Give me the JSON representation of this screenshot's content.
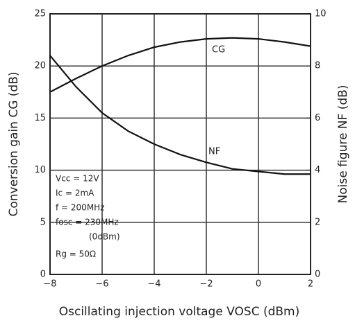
{
  "chart_data": {
    "type": "line",
    "x": [
      -8,
      -7,
      -6,
      -5,
      -4,
      -3,
      -2,
      -1,
      0,
      1,
      2
    ],
    "series": [
      {
        "name": "CG",
        "color": "#111111",
        "values": [
          17.5,
          18.8,
          20,
          21,
          21.8,
          22.3,
          22.6,
          22.7,
          22.6,
          22.3,
          21.9
        ]
      },
      {
        "name": "NF",
        "color": "#111111",
        "axis": "y2",
        "values": [
          8.4,
          7.2,
          6.2,
          5.5,
          5.0,
          4.6,
          4.3,
          4.05,
          3.95,
          3.85,
          3.85
        ]
      }
    ],
    "xlabel": "Oscillating injection voltage VOSC (dBm)",
    "ylabel": "Conversion gain CG (dB)",
    "y2label": "Noise figure NF (dB)",
    "xlim": [
      -8,
      2
    ],
    "xticks": [
      {
        "value": -8,
        "label": "−8"
      },
      {
        "value": -6,
        "label": "−6"
      },
      {
        "value": -4,
        "label": "−4"
      },
      {
        "value": -2,
        "label": "−2"
      },
      0,
      2
    ],
    "ylim": [
      0,
      25
    ],
    "yticks": [
      0,
      5,
      10,
      15,
      20,
      25
    ],
    "y2lim": [
      0,
      10
    ],
    "y2ticks": [
      0,
      2,
      4,
      6,
      8,
      10
    ],
    "grid": true,
    "annotations": [
      "Vcc = 12V",
      "Ic = 2mA",
      "f = 200MHz",
      "fosc = 230MHz",
      "(0dBm)",
      "Rg = 50Ω"
    ]
  }
}
